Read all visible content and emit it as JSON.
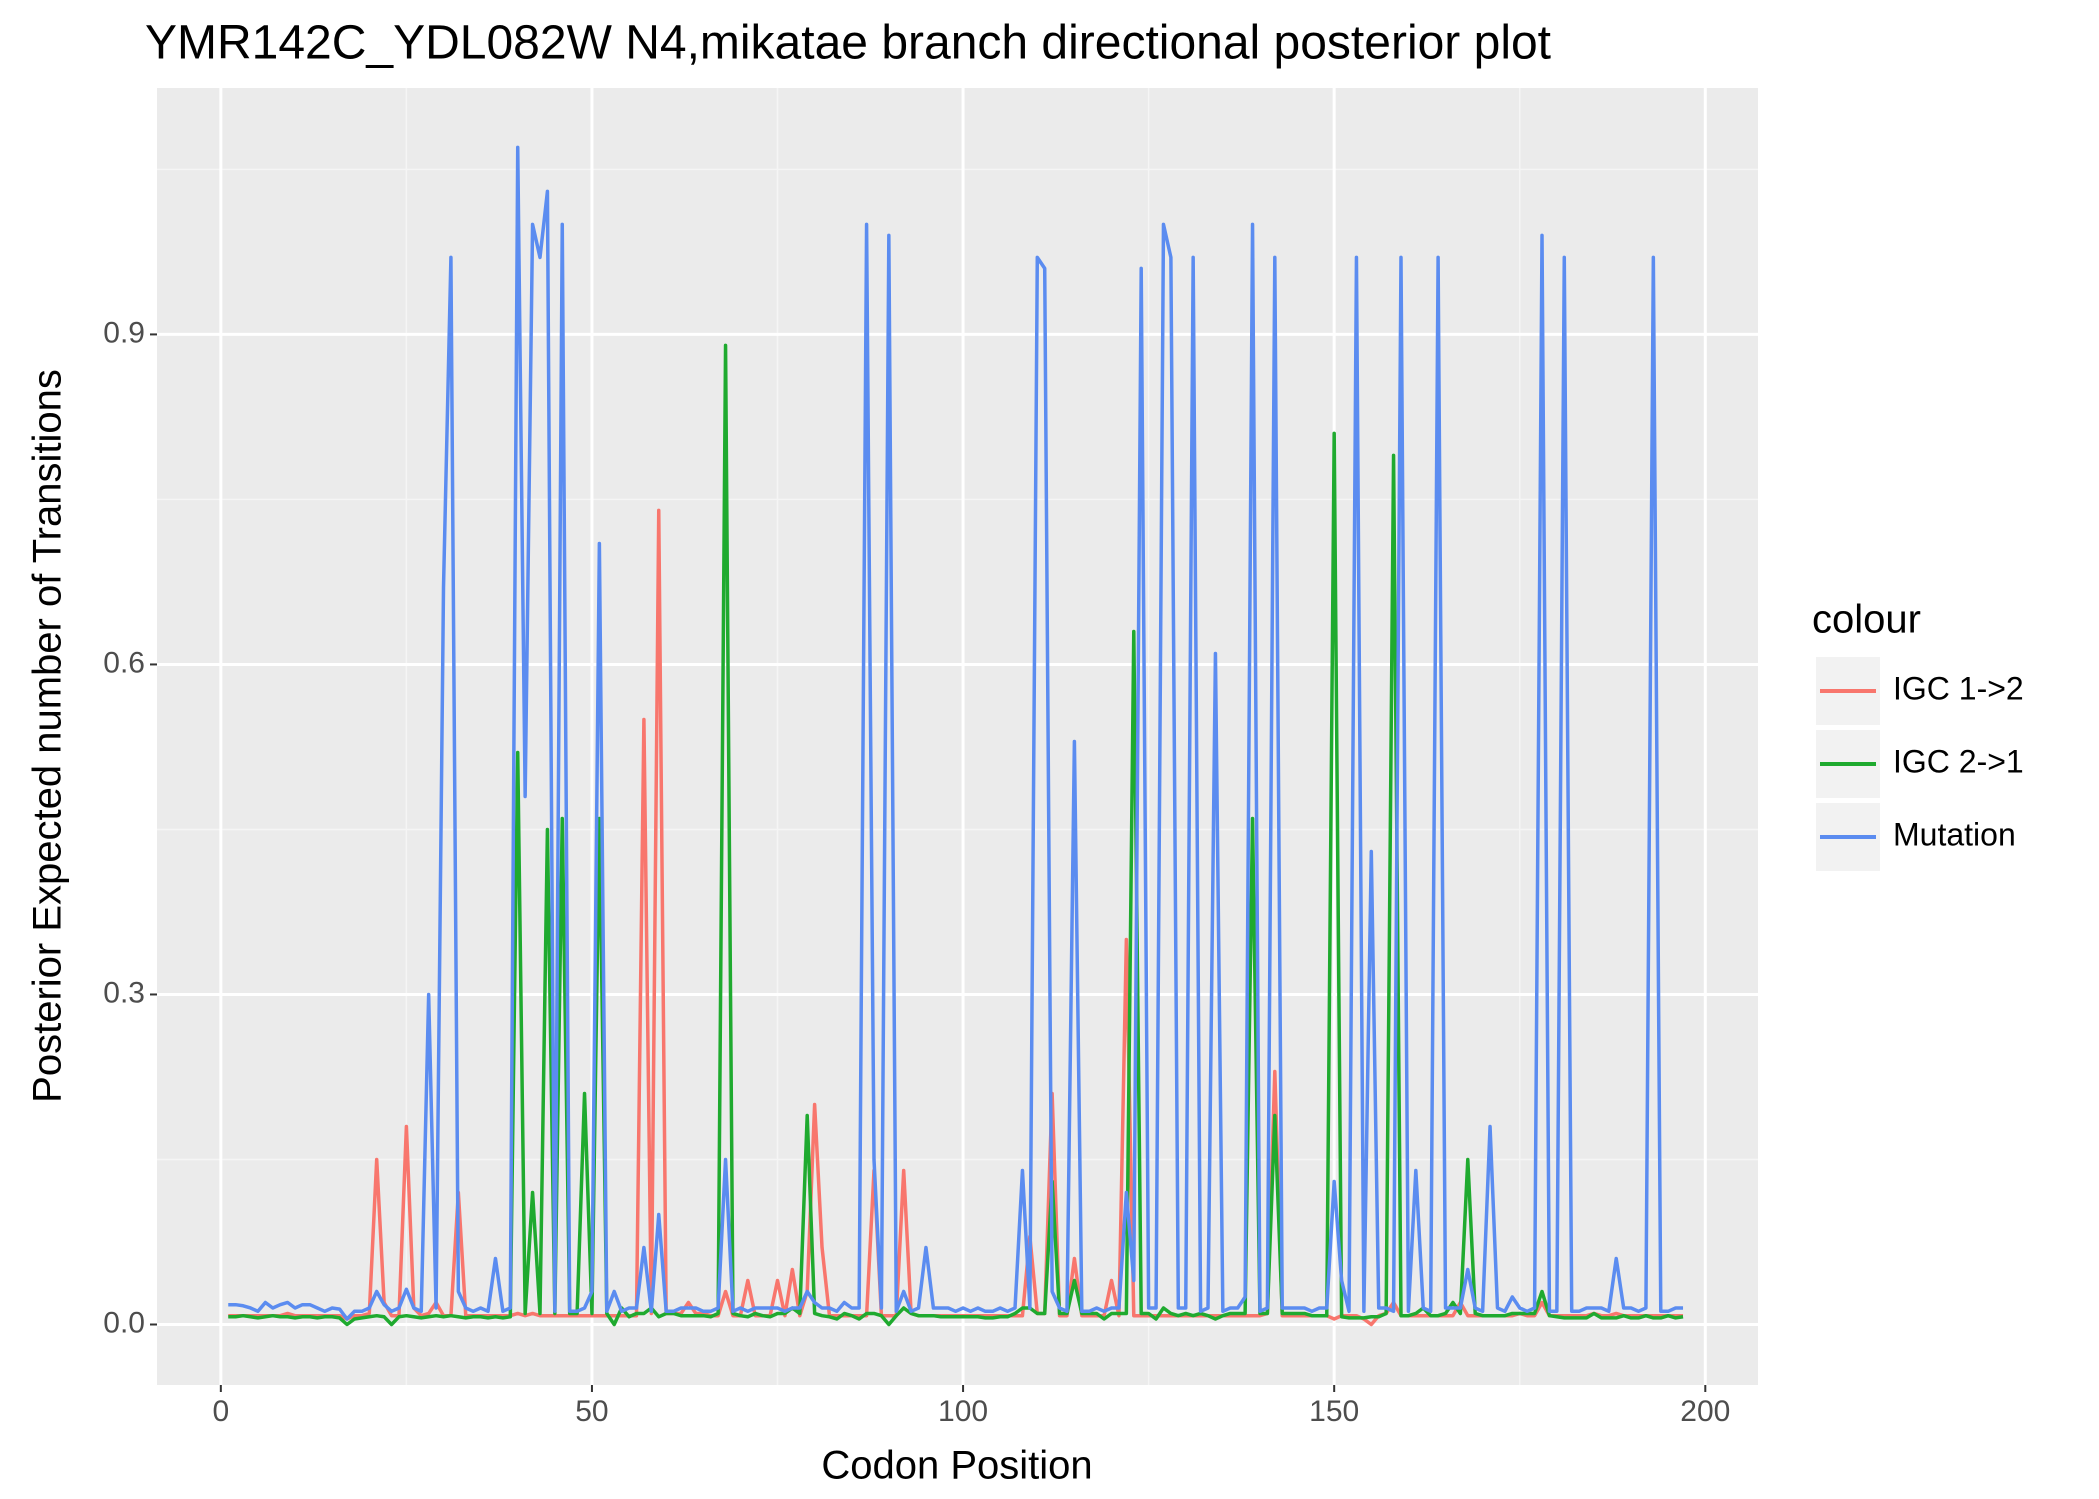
{
  "chart_data": {
    "type": "line",
    "title": "YMR142C_YDL082W N4,mikatae branch directional posterior plot",
    "x_label": "Codon Position",
    "y_label": "Posterior Expected number of Transitions",
    "legend_title": "colour",
    "legend_position": "right",
    "grid": true,
    "xlim": [
      -8.6,
      207.1
    ],
    "ylim": [
      -0.055,
      1.124
    ],
    "xticks": [
      0,
      50,
      100,
      150,
      200
    ],
    "yticks": [
      {
        "value": 0,
        "label": "0.0"
      },
      {
        "value": 0.3,
        "label": "0.3"
      },
      {
        "value": 0.6,
        "label": "0.6"
      },
      {
        "value": 0.9,
        "label": "0.9"
      }
    ],
    "x": [
      1,
      2,
      3,
      4,
      5,
      6,
      7,
      8,
      9,
      10,
      11,
      12,
      13,
      14,
      15,
      16,
      17,
      18,
      19,
      20,
      21,
      22,
      23,
      24,
      25,
      26,
      27,
      28,
      29,
      30,
      31,
      32,
      33,
      34,
      35,
      36,
      37,
      38,
      39,
      40,
      41,
      42,
      43,
      44,
      45,
      46,
      47,
      48,
      49,
      50,
      51,
      52,
      53,
      54,
      55,
      56,
      57,
      58,
      59,
      60,
      61,
      62,
      63,
      64,
      65,
      66,
      67,
      68,
      69,
      70,
      71,
      72,
      73,
      74,
      75,
      76,
      77,
      78,
      79,
      80,
      81,
      82,
      83,
      84,
      85,
      86,
      87,
      88,
      89,
      90,
      91,
      92,
      93,
      94,
      95,
      96,
      97,
      98,
      99,
      100,
      101,
      102,
      103,
      104,
      105,
      106,
      107,
      108,
      109,
      110,
      111,
      112,
      113,
      114,
      115,
      116,
      117,
      118,
      119,
      120,
      121,
      122,
      123,
      124,
      125,
      126,
      127,
      128,
      129,
      130,
      131,
      132,
      133,
      134,
      135,
      136,
      137,
      138,
      139,
      140,
      141,
      142,
      143,
      144,
      145,
      146,
      147,
      148,
      149,
      150,
      151,
      152,
      153,
      154,
      155,
      156,
      157,
      158,
      159,
      160,
      161,
      162,
      163,
      164,
      165,
      166,
      167,
      168,
      169,
      170,
      171,
      172,
      173,
      174,
      175,
      176,
      177,
      178,
      179,
      180,
      181,
      182,
      183,
      184,
      185,
      186,
      187,
      188,
      189,
      190,
      191,
      192,
      193,
      194,
      195,
      196,
      197
    ],
    "series": [
      {
        "name": "IGC 1->2",
        "color": "#f8766d",
        "values": [
          0.008,
          0.008,
          0.008,
          0.008,
          0.008,
          0.008,
          0.008,
          0.008,
          0.01,
          0.008,
          0.008,
          0.008,
          0.008,
          0.008,
          0.008,
          0.008,
          0.005,
          0.008,
          0.008,
          0.01,
          0.15,
          0.02,
          0.008,
          0.008,
          0.18,
          0.015,
          0.008,
          0.01,
          0.02,
          0.008,
          0.008,
          0.12,
          0.008,
          0.008,
          0.008,
          0.008,
          0.008,
          0.008,
          0.008,
          0.01,
          0.008,
          0.01,
          0.008,
          0.008,
          0.008,
          0.008,
          0.008,
          0.008,
          0.008,
          0.008,
          0.008,
          0.008,
          0.008,
          0.008,
          0.008,
          0.008,
          0.55,
          0.01,
          0.74,
          0.01,
          0.01,
          0.01,
          0.02,
          0.01,
          0.01,
          0.008,
          0.008,
          0.03,
          0.008,
          0.008,
          0.04,
          0.008,
          0.008,
          0.008,
          0.04,
          0.008,
          0.05,
          0.008,
          0.03,
          0.2,
          0.07,
          0.008,
          0.008,
          0.008,
          0.008,
          0.008,
          0.008,
          0.14,
          0.008,
          0.008,
          0.008,
          0.14,
          0.01,
          0.008,
          0.008,
          0.008,
          0.008,
          0.008,
          0.008,
          0.008,
          0.008,
          0.008,
          0.008,
          0.008,
          0.008,
          0.008,
          0.008,
          0.008,
          0.08,
          0.01,
          0.01,
          0.21,
          0.008,
          0.008,
          0.06,
          0.008,
          0.008,
          0.008,
          0.008,
          0.04,
          0.008,
          0.35,
          0.008,
          0.008,
          0.008,
          0.008,
          0.008,
          0.008,
          0.008,
          0.008,
          0.008,
          0.008,
          0.008,
          0.008,
          0.008,
          0.008,
          0.008,
          0.008,
          0.008,
          0.008,
          0.01,
          0.23,
          0.008,
          0.008,
          0.008,
          0.008,
          0.008,
          0.008,
          0.008,
          0.005,
          0.008,
          0.008,
          0.008,
          0.005,
          0.0,
          0.008,
          0.01,
          0.02,
          0.008,
          0.008,
          0.008,
          0.008,
          0.008,
          0.008,
          0.008,
          0.008,
          0.02,
          0.008,
          0.008,
          0.008,
          0.008,
          0.008,
          0.008,
          0.008,
          0.01,
          0.008,
          0.008,
          0.02,
          0.008,
          0.008,
          0.008,
          0.008,
          0.008,
          0.008,
          0.01,
          0.008,
          0.008,
          0.01,
          0.008,
          0.008,
          0.008,
          0.008,
          0.008,
          0.008,
          0.008,
          0.008,
          0.008
        ]
      },
      {
        "name": "IGC 2->1",
        "color": "#1faa2f",
        "values": [
          0.007,
          0.007,
          0.008,
          0.007,
          0.006,
          0.007,
          0.008,
          0.007,
          0.007,
          0.006,
          0.007,
          0.007,
          0.006,
          0.007,
          0.007,
          0.006,
          0.0,
          0.005,
          0.006,
          0.007,
          0.008,
          0.007,
          0.0,
          0.007,
          0.008,
          0.007,
          0.006,
          0.007,
          0.008,
          0.007,
          0.008,
          0.007,
          0.006,
          0.007,
          0.007,
          0.006,
          0.007,
          0.006,
          0.007,
          0.52,
          0.01,
          0.12,
          0.01,
          0.45,
          0.01,
          0.46,
          0.01,
          0.01,
          0.21,
          0.01,
          0.46,
          0.01,
          0.0,
          0.015,
          0.007,
          0.01,
          0.01,
          0.015,
          0.007,
          0.01,
          0.01,
          0.008,
          0.008,
          0.008,
          0.008,
          0.007,
          0.01,
          0.89,
          0.01,
          0.008,
          0.007,
          0.01,
          0.008,
          0.007,
          0.01,
          0.01,
          0.015,
          0.01,
          0.19,
          0.01,
          0.008,
          0.007,
          0.005,
          0.01,
          0.008,
          0.005,
          0.01,
          0.01,
          0.008,
          0.0,
          0.008,
          0.015,
          0.01,
          0.008,
          0.008,
          0.008,
          0.007,
          0.007,
          0.007,
          0.007,
          0.007,
          0.007,
          0.006,
          0.006,
          0.007,
          0.007,
          0.01,
          0.015,
          0.015,
          0.01,
          0.01,
          0.13,
          0.01,
          0.01,
          0.04,
          0.01,
          0.01,
          0.01,
          0.005,
          0.01,
          0.01,
          0.01,
          0.63,
          0.01,
          0.01,
          0.005,
          0.015,
          0.01,
          0.008,
          0.01,
          0.008,
          0.01,
          0.008,
          0.005,
          0.008,
          0.01,
          0.01,
          0.01,
          0.46,
          0.01,
          0.01,
          0.19,
          0.01,
          0.01,
          0.01,
          0.01,
          0.008,
          0.008,
          0.008,
          0.81,
          0.007,
          0.006,
          0.006,
          0.006,
          0.007,
          0.007,
          0.01,
          0.79,
          0.008,
          0.008,
          0.01,
          0.015,
          0.008,
          0.008,
          0.01,
          0.02,
          0.01,
          0.15,
          0.01,
          0.008,
          0.008,
          0.008,
          0.008,
          0.01,
          0.01,
          0.01,
          0.01,
          0.03,
          0.008,
          0.007,
          0.006,
          0.006,
          0.006,
          0.006,
          0.01,
          0.006,
          0.006,
          0.006,
          0.008,
          0.006,
          0.006,
          0.008,
          0.006,
          0.006,
          0.008,
          0.006,
          0.007
        ]
      },
      {
        "name": "Mutation",
        "color": "#5b8cf0",
        "values": [
          0.018,
          0.018,
          0.017,
          0.015,
          0.012,
          0.02,
          0.015,
          0.018,
          0.02,
          0.015,
          0.018,
          0.018,
          0.015,
          0.012,
          0.015,
          0.014,
          0.005,
          0.012,
          0.012,
          0.015,
          0.03,
          0.018,
          0.012,
          0.015,
          0.032,
          0.015,
          0.012,
          0.3,
          0.015,
          0.67,
          0.97,
          0.03,
          0.015,
          0.012,
          0.015,
          0.012,
          0.06,
          0.012,
          0.015,
          1.07,
          0.48,
          1.0,
          0.97,
          1.03,
          0.012,
          1.0,
          0.012,
          0.012,
          0.015,
          0.03,
          0.71,
          0.012,
          0.03,
          0.012,
          0.015,
          0.015,
          0.07,
          0.012,
          0.1,
          0.012,
          0.012,
          0.015,
          0.015,
          0.015,
          0.012,
          0.012,
          0.015,
          0.15,
          0.012,
          0.015,
          0.012,
          0.015,
          0.015,
          0.015,
          0.015,
          0.012,
          0.015,
          0.015,
          0.03,
          0.02,
          0.015,
          0.015,
          0.012,
          0.02,
          0.015,
          0.015,
          1.0,
          0.15,
          0.015,
          0.99,
          0.012,
          0.03,
          0.012,
          0.015,
          0.07,
          0.015,
          0.015,
          0.015,
          0.012,
          0.015,
          0.012,
          0.015,
          0.012,
          0.012,
          0.015,
          0.012,
          0.015,
          0.14,
          0.015,
          0.97,
          0.96,
          0.03,
          0.015,
          0.012,
          0.53,
          0.012,
          0.012,
          0.015,
          0.012,
          0.015,
          0.015,
          0.12,
          0.04,
          0.96,
          0.015,
          0.015,
          1.0,
          0.97,
          0.015,
          0.015,
          0.97,
          0.012,
          0.015,
          0.61,
          0.012,
          0.015,
          0.015,
          0.025,
          1.0,
          0.012,
          0.015,
          0.97,
          0.015,
          0.015,
          0.015,
          0.015,
          0.012,
          0.015,
          0.015,
          0.13,
          0.04,
          0.012,
          0.97,
          0.012,
          0.43,
          0.015,
          0.015,
          0.012,
          0.97,
          0.012,
          0.14,
          0.015,
          0.012,
          0.97,
          0.015,
          0.015,
          0.015,
          0.05,
          0.015,
          0.012,
          0.18,
          0.015,
          0.012,
          0.025,
          0.015,
          0.012,
          0.015,
          0.99,
          0.012,
          0.012,
          0.97,
          0.012,
          0.012,
          0.015,
          0.015,
          0.015,
          0.012,
          0.06,
          0.015,
          0.015,
          0.012,
          0.015,
          0.97,
          0.012,
          0.012,
          0.015,
          0.015
        ]
      }
    ]
  }
}
